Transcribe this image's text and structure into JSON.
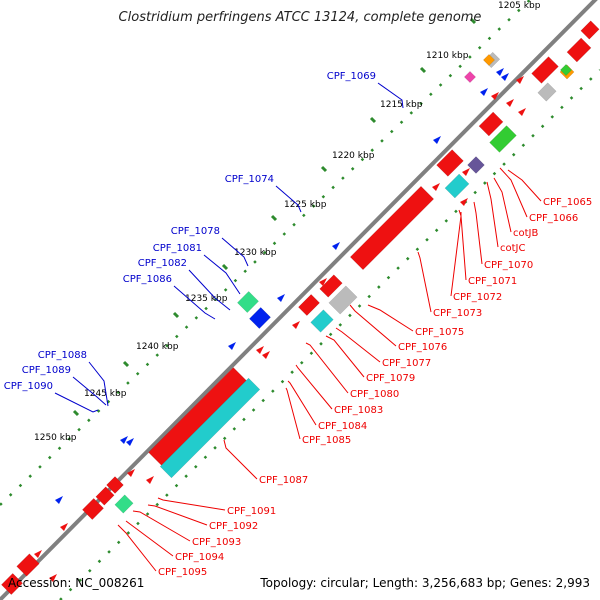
{
  "title": "Clostridium perfringens ATCC 13124, complete genome",
  "footer": {
    "accession": "Accession: NC_008261",
    "topology": "Topology: circular; Length: 3,256,683 bp; Genes: 2,993"
  },
  "colors": {
    "backbone": "#808080",
    "scale_dots": "#2e8b2e",
    "label_minus": "#0000cc",
    "label_plus": "#ee0000",
    "gene_red": "#ee1111",
    "gene_blue": "#0022ee",
    "gene_cyan": "#22cccc",
    "gene_green": "#33cc33",
    "gene_gray": "#bbbbbb"
  },
  "scale_labels": [
    "1205 kbp",
    "1210 kbp",
    "1215 kbp",
    "1220 kbp",
    "1225 kbp",
    "1230 kbp",
    "1235 kbp",
    "1240 kbp",
    "1245 kbp",
    "1250 kbp"
  ],
  "labels_minus": [
    "CPF_1069",
    "CPF_1074",
    "CPF_1078",
    "CPF_1081",
    "CPF_1082",
    "CPF_1086",
    "CPF_1088",
    "CPF_1089",
    "CPF_1090"
  ],
  "labels_plus": [
    "CPF_1065",
    "CPF_1066",
    "cotJB",
    "cotJC",
    "CPF_1070",
    "CPF_1071",
    "CPF_1072",
    "CPF_1073",
    "CPF_1075",
    "CPF_1076",
    "CPF_1077",
    "CPF_1079",
    "CPF_1080",
    "CPF_1083",
    "CPF_1084",
    "CPF_1085",
    "CPF_1087",
    "CPF_1091",
    "CPF_1092",
    "CPF_1093",
    "CPF_1094",
    "CPF_1095"
  ]
}
